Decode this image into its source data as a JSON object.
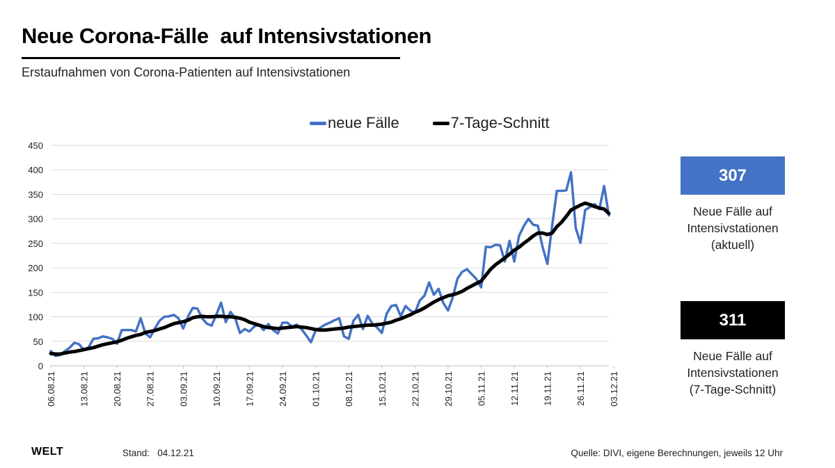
{
  "header": {
    "title": "Neue Corona-Fälle  auf Intensivstationen",
    "subtitle": "Erstaufnahmen von Corona-Patienten auf Intensivstationen"
  },
  "legend": {
    "items": [
      {
        "label": "neue Fälle",
        "color": "#4472C4"
      },
      {
        "label": "7-Tage-Schnitt",
        "color": "#000000"
      }
    ]
  },
  "kpis": [
    {
      "value": "307",
      "box_color": "#4472C4",
      "label_lines": [
        "Neue Fälle auf",
        "Intensivstationen",
        "(aktuell)"
      ]
    },
    {
      "value": "311",
      "box_color": "#000000",
      "label_lines": [
        "Neue Fälle auf",
        "Intensivstationen",
        "(7-Tage-Schnitt)"
      ]
    }
  ],
  "footer": {
    "logo": "WELT",
    "stand": "Stand:   04.12.21",
    "source": "Quelle: DIVI, eigene Berechnungen, jeweils 12 Uhr"
  },
  "chart_data": {
    "type": "line",
    "title": "Neue Corona-Fälle  auf Intensivstationen",
    "xlabel": "",
    "ylabel": "",
    "ylim": [
      0,
      450
    ],
    "yticks": [
      0,
      50,
      100,
      150,
      200,
      250,
      300,
      350,
      400,
      450
    ],
    "grid": true,
    "legend_position": "top",
    "xtick_labels": [
      "06.08.21",
      "13.08.21",
      "20.08.21",
      "27.08.21",
      "03.09.21",
      "10.09.21",
      "17.09.21",
      "24.09.21",
      "01.10.21",
      "08.10.21",
      "15.10.21",
      "22.10.21",
      "29.10.21",
      "05.11.21",
      "12.11.21",
      "19.11.21",
      "26.11.21",
      "03.12.21"
    ],
    "series": [
      {
        "name": "neue Fälle",
        "color": "#4472C4",
        "values": [
          30,
          20,
          22,
          30,
          37,
          47,
          44,
          32,
          38,
          55,
          56,
          60,
          58,
          55,
          45,
          73,
          73,
          73,
          70,
          97,
          66,
          58,
          76,
          92,
          100,
          101,
          104,
          97,
          76,
          100,
          118,
          117,
          97,
          86,
          82,
          104,
          129,
          89,
          110,
          97,
          67,
          75,
          70,
          80,
          84,
          73,
          85,
          73,
          66,
          88,
          88,
          80,
          84,
          75,
          62,
          48,
          72,
          78,
          84,
          88,
          93,
          97,
          60,
          55,
          92,
          104,
          75,
          102,
          86,
          78,
          67,
          106,
          122,
          124,
          101,
          122,
          113,
          108,
          133,
          143,
          170,
          145,
          157,
          128,
          113,
          140,
          178,
          192,
          197,
          187,
          177,
          160,
          243,
          242,
          247,
          246,
          213,
          255,
          213,
          265,
          285,
          300,
          288,
          286,
          242,
          208,
          285,
          357,
          357,
          358,
          395,
          281,
          251,
          318,
          324,
          330,
          320,
          367,
          307
        ]
      },
      {
        "name": "7-Tage-Schnitt",
        "color": "#000000",
        "values": [
          25,
          24,
          24,
          26,
          28,
          29,
          31,
          33,
          35,
          37,
          40,
          43,
          45,
          47,
          49,
          52,
          56,
          59,
          62,
          64,
          68,
          70,
          72,
          75,
          78,
          82,
          86,
          88,
          90,
          93,
          98,
          100,
          101,
          100,
          100,
          101,
          101,
          100,
          100,
          99,
          97,
          94,
          89,
          86,
          83,
          80,
          78,
          77,
          76,
          77,
          78,
          79,
          80,
          79,
          78,
          76,
          74,
          73,
          73,
          74,
          75,
          76,
          77,
          79,
          80,
          81,
          82,
          83,
          83,
          84,
          85,
          87,
          89,
          93,
          96,
          100,
          104,
          109,
          113,
          118,
          124,
          130,
          135,
          139,
          143,
          145,
          148,
          152,
          158,
          163,
          168,
          173,
          185,
          197,
          206,
          213,
          220,
          228,
          236,
          242,
          250,
          257,
          265,
          271,
          271,
          268,
          271,
          284,
          293,
          305,
          318,
          323,
          328,
          332,
          329,
          325,
          322,
          320,
          311
        ]
      }
    ]
  }
}
